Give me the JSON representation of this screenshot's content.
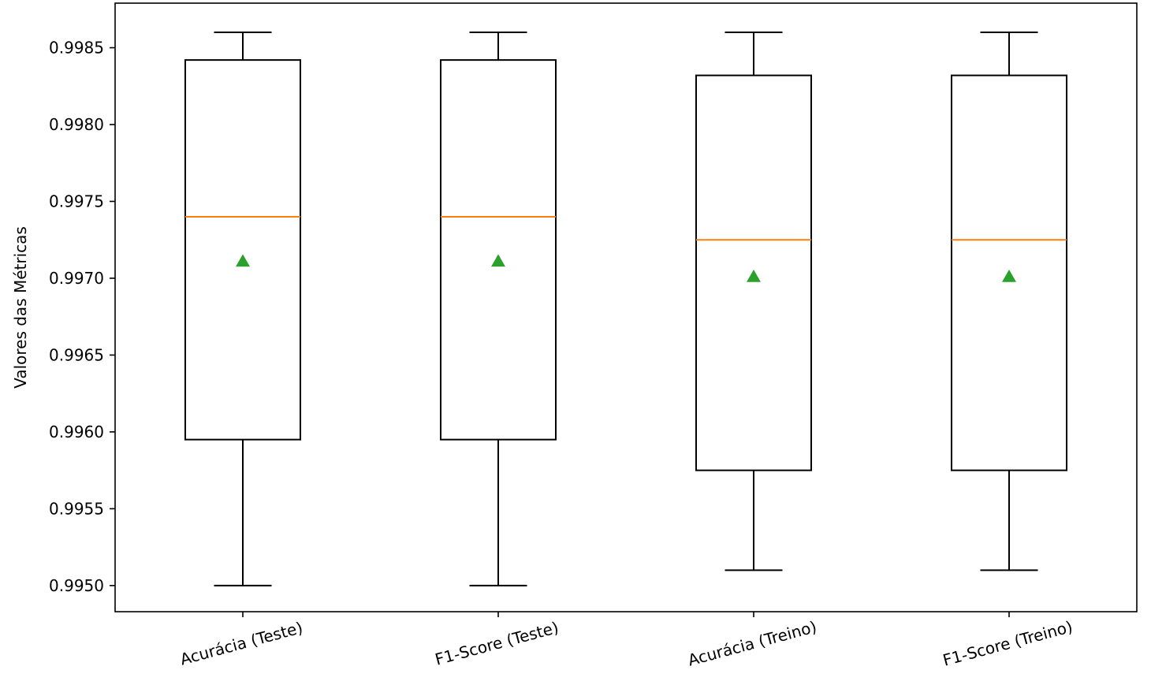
{
  "chart_data": {
    "type": "box",
    "title": "",
    "xlabel": "",
    "ylabel": "Valores das Métricas",
    "ylim": [
      0.99483,
      0.99879
    ],
    "yticks": [
      0.995,
      0.9955,
      0.996,
      0.9965,
      0.997,
      0.9975,
      0.998,
      0.9985
    ],
    "ytick_labels": [
      "0.9950",
      "0.9955",
      "0.9960",
      "0.9965",
      "0.9970",
      "0.9975",
      "0.9980",
      "0.9985"
    ],
    "categories": [
      "Acurácia (Teste)",
      "F1-Score (Teste)",
      "Acurácia (Treino)",
      "F1-Score (Treino)"
    ],
    "boxes": [
      {
        "whisker_low": 0.995,
        "q1": 0.99595,
        "median": 0.9974,
        "q3": 0.99842,
        "whisker_high": 0.9986,
        "mean": 0.99711
      },
      {
        "whisker_low": 0.995,
        "q1": 0.99595,
        "median": 0.9974,
        "q3": 0.99842,
        "whisker_high": 0.9986,
        "mean": 0.99711
      },
      {
        "whisker_low": 0.9951,
        "q1": 0.99575,
        "median": 0.99725,
        "q3": 0.99832,
        "whisker_high": 0.9986,
        "mean": 0.99701
      },
      {
        "whisker_low": 0.9951,
        "q1": 0.99575,
        "median": 0.99725,
        "q3": 0.99832,
        "whisker_high": 0.9986,
        "mean": 0.99701
      }
    ],
    "colors": {
      "box": "#000000",
      "median": "#ff7f0e",
      "mean": "#2ca02c"
    },
    "grid": false,
    "x_tick_rotation": 15
  }
}
